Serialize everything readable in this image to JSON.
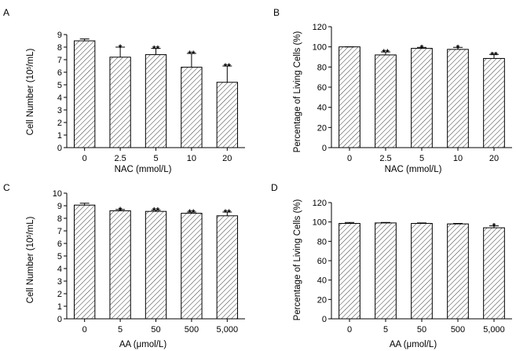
{
  "chart_data": [
    {
      "panel": "A",
      "type": "bar",
      "categories": [
        "0",
        "2.5",
        "5",
        "10",
        "20"
      ],
      "values": [
        8.5,
        7.2,
        7.4,
        6.4,
        5.2
      ],
      "errors": [
        0.15,
        0.8,
        0.5,
        1.1,
        1.3
      ],
      "significance": [
        "",
        "*",
        "**",
        "**",
        "**"
      ],
      "xlabel": "NAC (mmol/L)",
      "ylabel_base": "Cell Number (10",
      "ylabel_sup": "5",
      "ylabel_tail": "/mL)",
      "ylim": [
        0,
        9
      ],
      "yticks": [
        0,
        1,
        2,
        3,
        4,
        5,
        6,
        7,
        8,
        9
      ]
    },
    {
      "panel": "B",
      "type": "bar",
      "categories": [
        "0",
        "2.5",
        "5",
        "10",
        "20"
      ],
      "values": [
        100,
        92,
        98.5,
        97.5,
        88.5
      ],
      "errors": [
        0,
        3,
        1,
        2,
        4
      ],
      "significance": [
        "",
        "**",
        "*",
        "*",
        "**"
      ],
      "xlabel": "NAC (mmol/L)",
      "ylabel_base": "Percentage of Living Cells (%)",
      "ylabel_sup": "",
      "ylabel_tail": "",
      "ylim": [
        0,
        120
      ],
      "yticks": [
        0,
        20,
        40,
        60,
        80,
        100,
        120
      ]
    },
    {
      "panel": "C",
      "type": "bar",
      "categories": [
        "0",
        "5",
        "50",
        "500",
        "5,000"
      ],
      "values": [
        9.05,
        8.6,
        8.55,
        8.4,
        8.2
      ],
      "errors": [
        0.15,
        0.1,
        0.1,
        0.1,
        0.3
      ],
      "significance": [
        "",
        "*",
        "**",
        "**",
        "**"
      ],
      "xlabel": "AA (μmol/L)",
      "ylabel_base": "Cell Number (10",
      "ylabel_sup": "5",
      "ylabel_tail": "/mL)",
      "ylim": [
        0,
        10
      ],
      "yticks": [
        0,
        1,
        2,
        3,
        4,
        5,
        6,
        7,
        8,
        9,
        10
      ]
    },
    {
      "panel": "D",
      "type": "bar",
      "categories": [
        "0",
        "5",
        "50",
        "500",
        "5,000"
      ],
      "values": [
        98.5,
        99,
        98.5,
        98,
        94
      ],
      "errors": [
        1,
        0.5,
        0.5,
        0.5,
        2
      ],
      "significance": [
        "",
        "",
        "",
        "",
        "*"
      ],
      "xlabel": "AA (μmol/L)",
      "ylabel_base": "Percentage of Living Cells (%)",
      "ylabel_sup": "",
      "ylabel_tail": "",
      "ylim": [
        0,
        120
      ],
      "yticks": [
        0,
        20,
        40,
        60,
        80,
        100,
        120
      ]
    }
  ]
}
